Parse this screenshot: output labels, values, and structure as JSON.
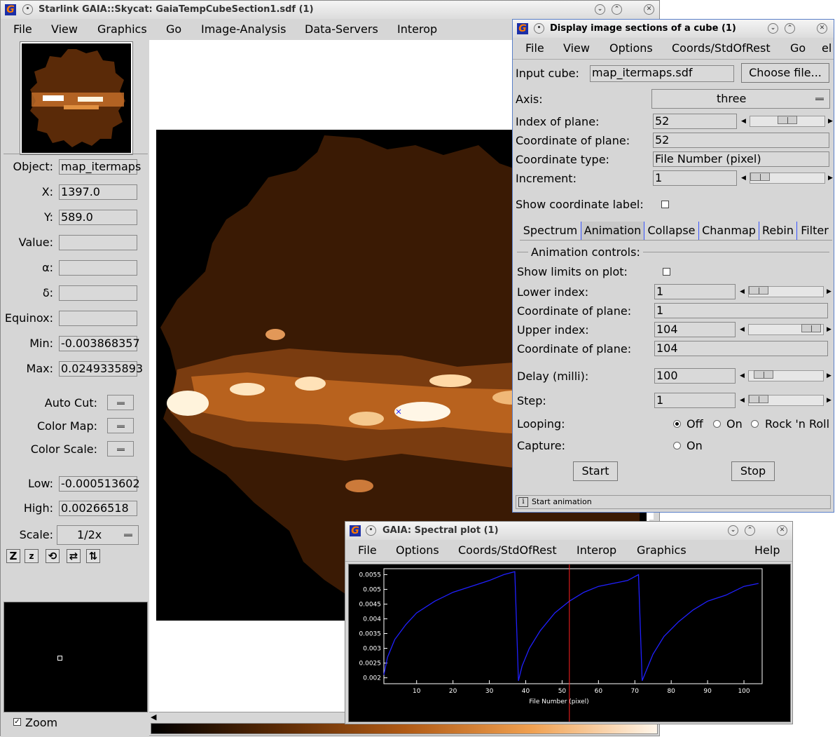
{
  "main_window": {
    "title": "Starlink GAIA::Skycat: GaiaTempCubeSection1.sdf (1)",
    "menu": [
      "File",
      "View",
      "Graphics",
      "Go",
      "Image-Analysis",
      "Data-Servers",
      "Interop"
    ],
    "info": {
      "object_label": "Object:",
      "object": "map_itermaps",
      "x_label": "X:",
      "x": "1397.0",
      "y_label": "Y:",
      "y": "589.0",
      "value_label": "Value:",
      "value": "",
      "alpha_label": "α:",
      "alpha": "",
      "delta_label": "δ:",
      "delta": "",
      "equinox_label": "Equinox:",
      "equinox": "",
      "min_label": "Min:",
      "min": "-0.003868357",
      "max_label": "Max:",
      "max": "0.0249335893",
      "autocut_label": "Auto Cut:",
      "colormap_label": "Color Map:",
      "colorscale_label": "Color Scale:",
      "low_label": "Low:",
      "low": "-0.000513602",
      "high_label": "High:",
      "high": "0.00266518",
      "scale_label": "Scale:",
      "scale": "1/2x"
    },
    "zoom_label": "Zoom"
  },
  "cube_window": {
    "title": "Display image sections of a cube (1)",
    "menu": [
      "File",
      "View",
      "Options",
      "Coords/StdOfRest",
      "Go",
      "el"
    ],
    "input_cube_label": "Input cube:",
    "input_cube": "map_itermaps.sdf",
    "choose_file": "Choose file...",
    "axis_label": "Axis:",
    "axis": "three",
    "index_label": "Index of plane:",
    "index": "52",
    "coord_plane_label": "Coordinate of plane:",
    "coord_plane": "52",
    "coord_type_label": "Coordinate type:",
    "coord_type": "File Number (pixel)",
    "increment_label": "Increment:",
    "increment": "1",
    "show_coord_label": "Show coordinate label:",
    "tabs": [
      "Spectrum",
      "Animation",
      "Collapse",
      "Chanmap",
      "Rebin",
      "Filter"
    ],
    "anim_title": "Animation controls:",
    "show_limits_label": "Show limits on plot:",
    "lower_label": "Lower index:",
    "lower": "1",
    "lower_coord_label": "Coordinate of plane:",
    "lower_coord": "1",
    "upper_label": "Upper index:",
    "upper": "104",
    "upper_coord_label": "Coordinate of plane:",
    "upper_coord": "104",
    "delay_label": "Delay (milli):",
    "delay": "100",
    "step_label": "Step:",
    "step": "1",
    "looping_label": "Looping:",
    "loop_off": "Off",
    "loop_on": "On",
    "loop_rock": "Rock 'n Roll",
    "capture_label": "Capture:",
    "capture_on": "On",
    "start": "Start",
    "stop": "Stop",
    "status": "Start animation"
  },
  "plot_window": {
    "title": "GAIA: Spectral plot (1)",
    "menu": [
      "File",
      "Options",
      "Coords/StdOfRest",
      "Interop",
      "Graphics",
      "Help"
    ]
  },
  "chart_data": {
    "type": "line",
    "xlabel": "File Number (pixel)",
    "ylabel": "",
    "xlim": [
      1,
      105
    ],
    "ylim": [
      0.0018,
      0.0057
    ],
    "x_ticks": [
      10,
      20,
      30,
      40,
      50,
      60,
      70,
      80,
      90,
      100
    ],
    "y_ticks": [
      0.002,
      0.0025,
      0.003,
      0.0035,
      0.004,
      0.0045,
      0.005,
      0.0055
    ],
    "y_tick_labels": [
      "0.002",
      "0.0025",
      "0.003",
      "0.0035",
      "0.004",
      "0.0045",
      "0.005",
      "0.0055"
    ],
    "marker_x": 52,
    "line_color": "#2020ff",
    "marker_color": "#ff2020",
    "series": [
      {
        "x": [
          1,
          2,
          4,
          7,
          10,
          15,
          20,
          25,
          30,
          34,
          37,
          38,
          39,
          41,
          44,
          48,
          52,
          56,
          60,
          64,
          68,
          71,
          72,
          73,
          75,
          78,
          82,
          86,
          90,
          95,
          100,
          104
        ],
        "values": [
          0.0021,
          0.0027,
          0.0033,
          0.0038,
          0.0042,
          0.0046,
          0.0049,
          0.0051,
          0.0053,
          0.0055,
          0.0056,
          0.0019,
          0.0024,
          0.003,
          0.0036,
          0.0042,
          0.0046,
          0.0049,
          0.0051,
          0.0052,
          0.0053,
          0.0055,
          0.0019,
          0.0022,
          0.0028,
          0.0034,
          0.0039,
          0.0043,
          0.0046,
          0.0048,
          0.0051,
          0.0052
        ]
      }
    ]
  }
}
